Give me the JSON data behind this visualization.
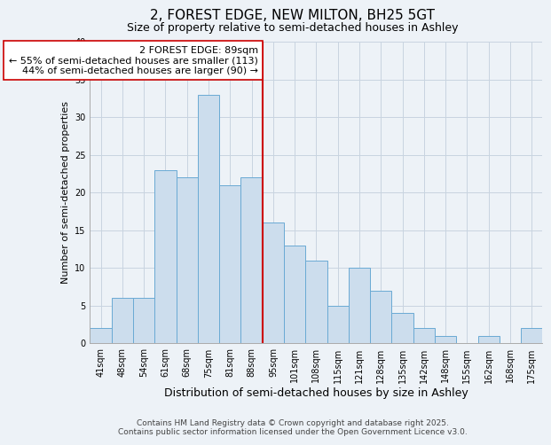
{
  "title": "2, FOREST EDGE, NEW MILTON, BH25 5GT",
  "subtitle": "Size of property relative to semi-detached houses in Ashley",
  "xlabel": "Distribution of semi-detached houses by size in Ashley",
  "ylabel": "Number of semi-detached properties",
  "categories": [
    "41sqm",
    "48sqm",
    "54sqm",
    "61sqm",
    "68sqm",
    "75sqm",
    "81sqm",
    "88sqm",
    "95sqm",
    "101sqm",
    "108sqm",
    "115sqm",
    "121sqm",
    "128sqm",
    "135sqm",
    "142sqm",
    "148sqm",
    "155sqm",
    "162sqm",
    "168sqm",
    "175sqm"
  ],
  "values": [
    2,
    6,
    6,
    23,
    22,
    33,
    21,
    22,
    16,
    13,
    11,
    5,
    10,
    7,
    4,
    2,
    1,
    0,
    1,
    0,
    2
  ],
  "bar_color": "#ccdded",
  "bar_edge_color": "#6aaad4",
  "vline_color": "#cc0000",
  "annotation_line1": "2 FOREST EDGE: 89sqm",
  "annotation_line2": "← 55% of semi-detached houses are smaller (113)",
  "annotation_line3": "44% of semi-detached houses are larger (90) →",
  "annotation_box_color": "#ffffff",
  "annotation_box_edge": "#cc0000",
  "ylim": [
    0,
    40
  ],
  "yticks": [
    0,
    5,
    10,
    15,
    20,
    25,
    30,
    35,
    40
  ],
  "grid_color": "#c8d4e0",
  "background_color": "#edf2f7",
  "footer_line1": "Contains HM Land Registry data © Crown copyright and database right 2025.",
  "footer_line2": "Contains public sector information licensed under the Open Government Licence v3.0.",
  "title_fontsize": 11,
  "subtitle_fontsize": 9,
  "xlabel_fontsize": 9,
  "ylabel_fontsize": 8,
  "tick_fontsize": 7,
  "annotation_fontsize": 8,
  "footer_fontsize": 6.5
}
